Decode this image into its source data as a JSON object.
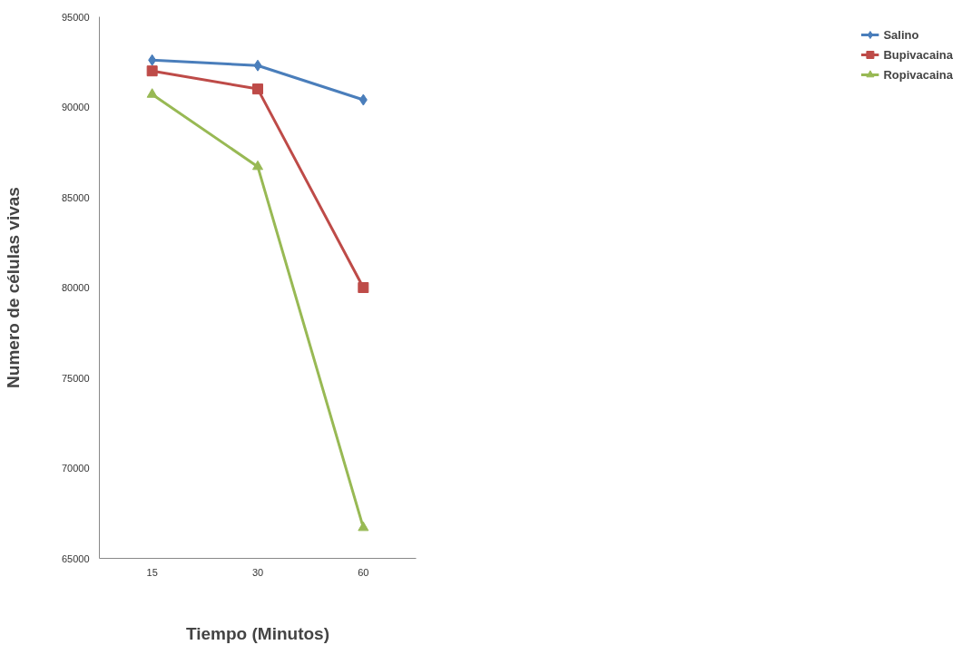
{
  "chart_data": {
    "type": "line",
    "xlabel": "Tiempo (Minutos)",
    "ylabel": "Numero de células vivas",
    "categories": [
      "15",
      "30",
      "60"
    ],
    "ylim": [
      65000,
      95000
    ],
    "yticks": [
      65000,
      70000,
      75000,
      80000,
      85000,
      90000,
      95000
    ],
    "grid": false,
    "legend": "right",
    "series": [
      {
        "name": "Salino",
        "color": "#4a7ebb",
        "marker": "diamond",
        "values": [
          92600,
          92300,
          90400
        ]
      },
      {
        "name": "Bupivacaina",
        "color": "#be4b48",
        "marker": "square",
        "values": [
          92000,
          91000,
          80000
        ]
      },
      {
        "name": "Ropivacaina",
        "color": "#98b954",
        "marker": "triangle",
        "values": [
          90700,
          86700,
          66700
        ]
      }
    ]
  }
}
